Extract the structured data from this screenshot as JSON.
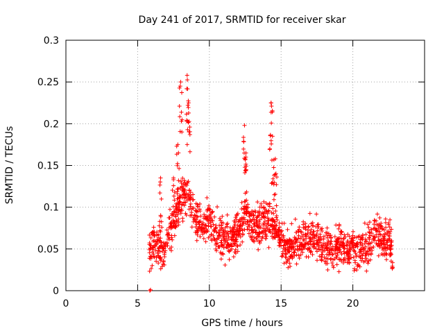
{
  "chart_data": {
    "type": "scatter",
    "title": "Day 241 of 2017, SRMTID for receiver skar",
    "xlabel": "GPS time / hours",
    "ylabel": "SRMTID / TECUs",
    "xlim": [
      0,
      25
    ],
    "ylim": [
      0,
      0.3
    ],
    "x_ticks": [
      0,
      5,
      10,
      15,
      20
    ],
    "x_tick_labels": [
      "0",
      "5",
      "10",
      "15",
      "20"
    ],
    "y_ticks": [
      0,
      0.05,
      0.1,
      0.15,
      0.2,
      0.25,
      0.3
    ],
    "y_tick_labels": [
      "0",
      "0.05",
      "0.1",
      "0.15",
      "0.2",
      "0.25",
      "0.3"
    ],
    "grid": true,
    "marker": "plus",
    "series": [
      {
        "name": "SRMTID",
        "color": "#ff0000",
        "x_start": 5.8,
        "x_end": 22.8,
        "profile": [
          [
            5.8,
            0.05
          ],
          [
            6.3,
            0.06
          ],
          [
            6.8,
            0.045
          ],
          [
            7.2,
            0.07
          ],
          [
            7.6,
            0.09
          ],
          [
            8.0,
            0.11
          ],
          [
            8.5,
            0.12
          ],
          [
            9.0,
            0.09
          ],
          [
            9.5,
            0.075
          ],
          [
            10.0,
            0.085
          ],
          [
            10.5,
            0.07
          ],
          [
            11.0,
            0.065
          ],
          [
            11.5,
            0.06
          ],
          [
            12.0,
            0.07
          ],
          [
            12.5,
            0.09
          ],
          [
            13.0,
            0.08
          ],
          [
            13.5,
            0.075
          ],
          [
            14.0,
            0.085
          ],
          [
            14.5,
            0.08
          ],
          [
            15.0,
            0.06
          ],
          [
            15.5,
            0.05
          ],
          [
            16.0,
            0.055
          ],
          [
            16.5,
            0.065
          ],
          [
            17.0,
            0.06
          ],
          [
            17.5,
            0.065
          ],
          [
            18.0,
            0.045
          ],
          [
            18.5,
            0.05
          ],
          [
            19.0,
            0.055
          ],
          [
            19.5,
            0.05
          ],
          [
            20.0,
            0.05
          ],
          [
            20.5,
            0.045
          ],
          [
            21.0,
            0.05
          ],
          [
            21.5,
            0.07
          ],
          [
            22.0,
            0.06
          ],
          [
            22.5,
            0.065
          ],
          [
            22.8,
            0.04
          ]
        ],
        "peaks": [
          {
            "x": 8.0,
            "y": 0.25
          },
          {
            "x": 8.45,
            "y": 0.258
          },
          {
            "x": 8.55,
            "y": 0.225
          },
          {
            "x": 7.8,
            "y": 0.175
          },
          {
            "x": 12.45,
            "y": 0.198
          },
          {
            "x": 12.55,
            "y": 0.165
          },
          {
            "x": 14.3,
            "y": 0.225
          },
          {
            "x": 14.4,
            "y": 0.185
          },
          {
            "x": 14.6,
            "y": 0.158
          },
          {
            "x": 7.5,
            "y": 0.135
          },
          {
            "x": 6.6,
            "y": 0.135
          }
        ],
        "outliers": [
          {
            "x": 5.85,
            "y": 0.0
          },
          {
            "x": 5.9,
            "y": 0.001
          }
        ],
        "min_value": 0.005
      }
    ]
  }
}
